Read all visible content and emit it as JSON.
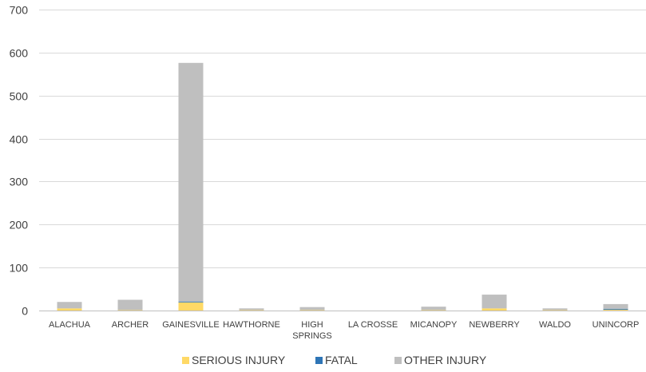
{
  "chart_data": {
    "type": "bar",
    "stacked": true,
    "categories": [
      "ALACHUA",
      "ARCHER",
      "GAINESVILLE",
      "HAWTHORNE",
      "HIGH SPRINGS",
      "LA CROSSE",
      "MICANOPY",
      "NEWBERRY",
      "WALDO",
      "UNINCORP"
    ],
    "series": [
      {
        "name": "SERIOUS INJURY",
        "color": "#FFD966",
        "values": [
          5,
          1,
          19,
          1,
          1,
          0,
          1,
          5,
          1,
          2
        ]
      },
      {
        "name": "FATAL",
        "color": "#2E75B6",
        "values": [
          0,
          0,
          2,
          0,
          0,
          0,
          0,
          0,
          0,
          2
        ]
      },
      {
        "name": "OTHER INJURY",
        "color": "#BFBFBF",
        "values": [
          15,
          24,
          555,
          4,
          7,
          0,
          8,
          32,
          4,
          11
        ]
      }
    ],
    "ylim": [
      0,
      700
    ],
    "yticks": [
      0,
      100,
      200,
      300,
      400,
      500,
      600,
      700
    ],
    "grid": true,
    "legend_position": "bottom",
    "title": "",
    "xlabel": "",
    "ylabel": ""
  }
}
